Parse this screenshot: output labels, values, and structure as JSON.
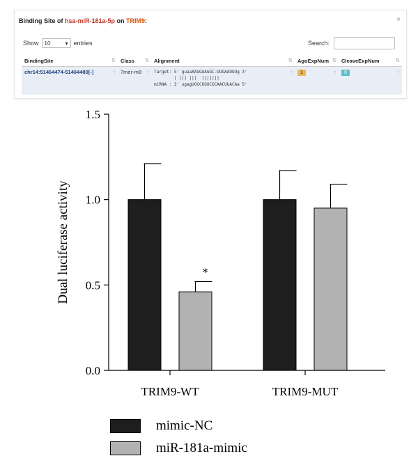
{
  "panel": {
    "title_prefix": "Binding Site of ",
    "mirna": "hsa-miR-181a-5p",
    "title_mid": " on ",
    "gene": "TRIM9",
    "title_suffix": ":",
    "close": "×",
    "show_label": "Show",
    "entries_value": "10",
    "entries_label": "entries",
    "search_label": "Search:",
    "columns": [
      "BindingSite",
      "Class",
      "Alignment",
      "AgoExpNum",
      "CleaveExpNum"
    ],
    "row": {
      "binding_site": "chr14:51464474-51464480[-]",
      "class": "7mer-m8",
      "target_line": "Target: 5' guaaAAUGAAGGC-UUGAAUUUg 3'",
      "bond_line": "        | ||| |||  |||||||",
      "mirna_line": "miRNA : 3' ugagUGGCUGUCGCAACUUACAa 5'",
      "ago": "1",
      "cleave": "0"
    }
  },
  "colors": {
    "mimic_nc": "#1e1e1e",
    "mir181a_mimic": "#b2b2b2"
  },
  "chart_data": {
    "type": "bar",
    "categories": [
      "TRIM9-WT",
      "TRIM9-MUT"
    ],
    "series": [
      {
        "name": "mimic-NC",
        "values": [
          1.0,
          1.0
        ],
        "errors": [
          0.21,
          0.17
        ]
      },
      {
        "name": "miR-181a-mimic",
        "values": [
          0.46,
          0.95
        ],
        "errors": [
          0.06,
          0.14
        ]
      }
    ],
    "annotations": [
      {
        "category": "TRIM9-WT",
        "series": "miR-181a-mimic",
        "text": "*"
      }
    ],
    "ylabel": "Dual luciferase activity",
    "ylim": [
      0,
      1.5
    ],
    "yticks": [
      "0.0",
      "0.5",
      "1.0",
      "1.5"
    ],
    "legend_position": "bottom"
  }
}
